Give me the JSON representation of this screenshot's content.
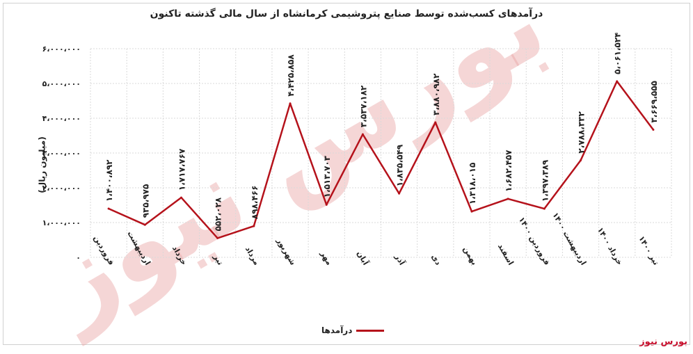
{
  "chart_data": {
    "type": "line",
    "title": "درآمدهای کسب‌شده توسط صنایع پتروشیمی کرمانشاه از سال مالی گذشته تاکنون",
    "ylabel": "(میلیون ریال)",
    "xlabel": "",
    "ylim": [
      0,
      6000000
    ],
    "yticks": [
      "۰",
      "۱،۰۰۰،۰۰۰",
      "۲،۰۰۰،۰۰۰",
      "۳،۰۰۰،۰۰۰",
      "۴،۰۰۰،۰۰۰",
      "۵،۰۰۰،۰۰۰",
      "۶،۰۰۰،۰۰۰"
    ],
    "ytick_values": [
      0,
      1000000,
      2000000,
      3000000,
      4000000,
      5000000,
      6000000
    ],
    "grid": true,
    "legend_position": "bottom",
    "categories": [
      "فروردین",
      "اردیبهشت",
      "خرداد",
      "تیر",
      "مرداد",
      "شهریور",
      "مهر",
      "آبان",
      "آذر",
      "دی",
      "بهمن",
      "اسفند",
      "فروردین ۱۴۰۰",
      "اردیبهشت ۱۴۰۰",
      "خرداد ۱۴۰۰",
      "تیر ۱۴۰۰"
    ],
    "series": [
      {
        "name": "درآمدها",
        "color": "#b5121b",
        "values": [
          1400892,
          935975,
          1717767,
          552028,
          898466,
          4425858,
          1513703,
          3537182,
          1835549,
          3880982,
          1318015,
          1682457,
          1397389,
          2788332,
          5061524,
          3669555
        ],
        "labels": [
          "۱،۴۰۰،۸۹۲",
          "۹۳۵،۹۷۵",
          "۱،۷۱۷،۷۶۷",
          "۵۵۲،۰۲۸",
          "۸۹۸،۴۶۶",
          "۴،۴۲۵،۸۵۸",
          "۱،۵۱۳،۷۰۳",
          "۳،۵۳۷،۱۸۲",
          "۱،۸۳۵،۵۴۹",
          "۳،۸۸۰،۹۸۲",
          "۱،۳۱۸،۰۱۵",
          "۱،۶۸۲،۴۵۷",
          "۱،۳۹۷،۳۸۹",
          "۲،۷۸۸،۳۳۲",
          "۵،۰۶۱،۵۲۴",
          "۳،۶۶۹،۵۵۵"
        ]
      }
    ]
  },
  "watermark": "بورس نیوز",
  "brand": "بورس نیوز"
}
